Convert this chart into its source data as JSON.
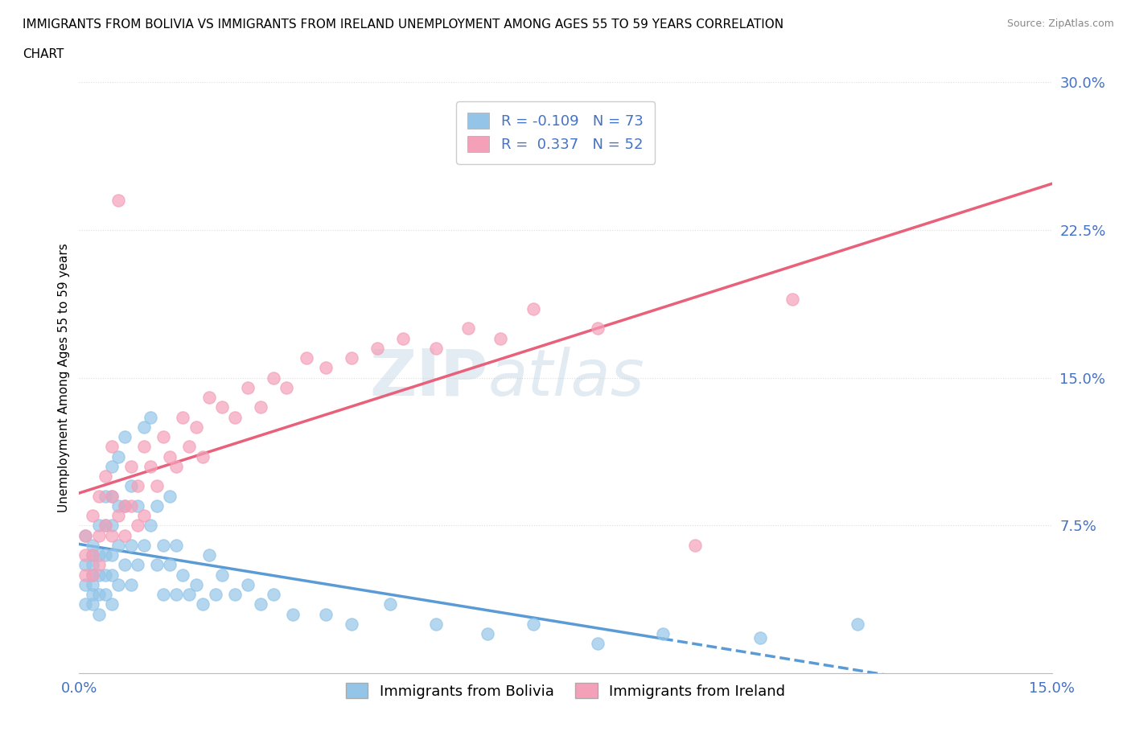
{
  "title_line1": "IMMIGRANTS FROM BOLIVIA VS IMMIGRANTS FROM IRELAND UNEMPLOYMENT AMONG AGES 55 TO 59 YEARS CORRELATION",
  "title_line2": "CHART",
  "source_text": "Source: ZipAtlas.com",
  "ylabel": "Unemployment Among Ages 55 to 59 years",
  "xlim": [
    0.0,
    0.15
  ],
  "ylim": [
    0.0,
    0.3
  ],
  "xticks": [
    0.0,
    0.025,
    0.05,
    0.075,
    0.1,
    0.125,
    0.15
  ],
  "xticklabels": [
    "0.0%",
    "",
    "",
    "",
    "",
    "",
    "15.0%"
  ],
  "yticks": [
    0.0,
    0.075,
    0.15,
    0.225,
    0.3
  ],
  "yticklabels": [
    "",
    "7.5%",
    "15.0%",
    "22.5%",
    "30.0%"
  ],
  "bolivia_color": "#94C5E8",
  "ireland_color": "#F4A0B8",
  "bolivia_R": -0.109,
  "bolivia_N": 73,
  "ireland_R": 0.337,
  "ireland_N": 52,
  "bolivia_trend_color": "#5B9BD5",
  "ireland_trend_color": "#E8607A",
  "legend_R_color": "#4472C4",
  "background_color": "#FFFFFF",
  "watermark_zip": "ZIP",
  "watermark_atlas": "atlas",
  "grid_color": "#DDDDDD",
  "bolivia_x": [
    0.001,
    0.001,
    0.001,
    0.001,
    0.002,
    0.002,
    0.002,
    0.002,
    0.002,
    0.002,
    0.002,
    0.003,
    0.003,
    0.003,
    0.003,
    0.003,
    0.004,
    0.004,
    0.004,
    0.004,
    0.004,
    0.005,
    0.005,
    0.005,
    0.005,
    0.005,
    0.005,
    0.006,
    0.006,
    0.006,
    0.006,
    0.007,
    0.007,
    0.007,
    0.008,
    0.008,
    0.008,
    0.009,
    0.009,
    0.01,
    0.01,
    0.011,
    0.011,
    0.012,
    0.012,
    0.013,
    0.013,
    0.014,
    0.014,
    0.015,
    0.015,
    0.016,
    0.017,
    0.018,
    0.019,
    0.02,
    0.021,
    0.022,
    0.024,
    0.026,
    0.028,
    0.03,
    0.033,
    0.038,
    0.042,
    0.048,
    0.055,
    0.063,
    0.07,
    0.08,
    0.09,
    0.105,
    0.12
  ],
  "bolivia_y": [
    0.055,
    0.045,
    0.035,
    0.07,
    0.06,
    0.05,
    0.04,
    0.055,
    0.065,
    0.045,
    0.035,
    0.075,
    0.06,
    0.05,
    0.04,
    0.03,
    0.09,
    0.075,
    0.06,
    0.05,
    0.04,
    0.105,
    0.09,
    0.075,
    0.06,
    0.05,
    0.035,
    0.11,
    0.085,
    0.065,
    0.045,
    0.12,
    0.085,
    0.055,
    0.095,
    0.065,
    0.045,
    0.085,
    0.055,
    0.125,
    0.065,
    0.13,
    0.075,
    0.085,
    0.055,
    0.065,
    0.04,
    0.09,
    0.055,
    0.065,
    0.04,
    0.05,
    0.04,
    0.045,
    0.035,
    0.06,
    0.04,
    0.05,
    0.04,
    0.045,
    0.035,
    0.04,
    0.03,
    0.03,
    0.025,
    0.035,
    0.025,
    0.02,
    0.025,
    0.015,
    0.02,
    0.018,
    0.025
  ],
  "ireland_x": [
    0.001,
    0.001,
    0.001,
    0.002,
    0.002,
    0.002,
    0.003,
    0.003,
    0.003,
    0.004,
    0.004,
    0.005,
    0.005,
    0.005,
    0.006,
    0.006,
    0.007,
    0.007,
    0.008,
    0.008,
    0.009,
    0.009,
    0.01,
    0.01,
    0.011,
    0.012,
    0.013,
    0.014,
    0.015,
    0.016,
    0.017,
    0.018,
    0.019,
    0.02,
    0.022,
    0.024,
    0.026,
    0.028,
    0.03,
    0.032,
    0.035,
    0.038,
    0.042,
    0.046,
    0.05,
    0.055,
    0.06,
    0.065,
    0.07,
    0.08,
    0.095,
    0.11
  ],
  "ireland_y": [
    0.06,
    0.05,
    0.07,
    0.08,
    0.06,
    0.05,
    0.09,
    0.07,
    0.055,
    0.1,
    0.075,
    0.115,
    0.09,
    0.07,
    0.24,
    0.08,
    0.085,
    0.07,
    0.105,
    0.085,
    0.095,
    0.075,
    0.115,
    0.08,
    0.105,
    0.095,
    0.12,
    0.11,
    0.105,
    0.13,
    0.115,
    0.125,
    0.11,
    0.14,
    0.135,
    0.13,
    0.145,
    0.135,
    0.15,
    0.145,
    0.16,
    0.155,
    0.16,
    0.165,
    0.17,
    0.165,
    0.175,
    0.17,
    0.185,
    0.175,
    0.065,
    0.19
  ]
}
